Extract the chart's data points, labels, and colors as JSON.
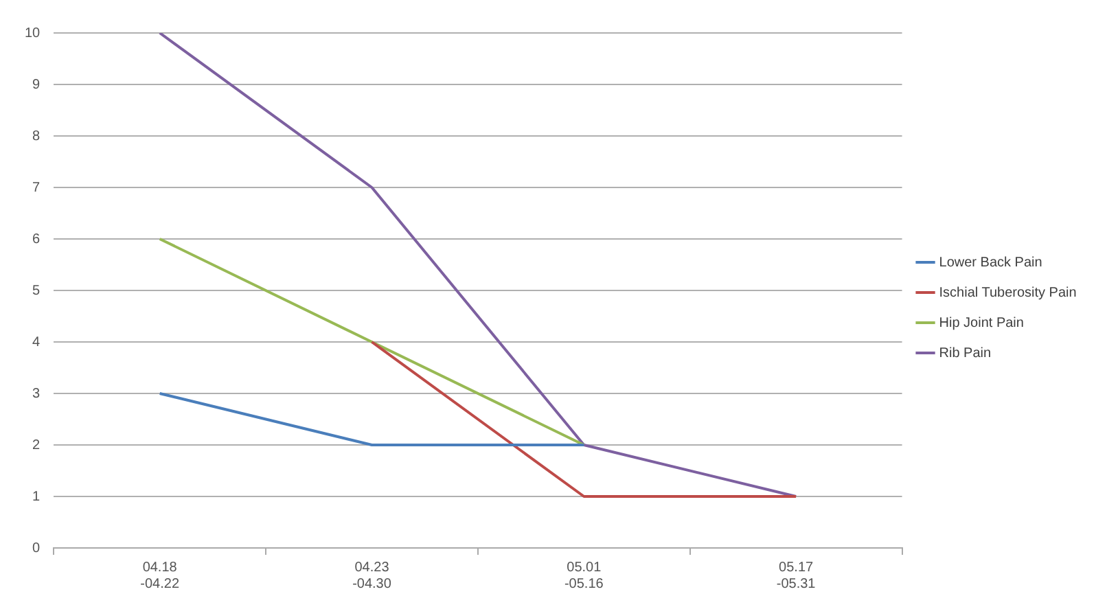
{
  "chart_data": {
    "type": "line",
    "categories": [
      "04.18\n-04.22",
      "04.23\n-04.30",
      "05.01\n-05.16",
      "05.17\n-05.31"
    ],
    "series": [
      {
        "name": "Lower Back Pain",
        "color": "#4a7ebb",
        "values": [
          3,
          2,
          2,
          null
        ]
      },
      {
        "name": "Ischial Tuberosity Pain",
        "color": "#be4b48",
        "values": [
          null,
          4,
          1,
          1
        ]
      },
      {
        "name": "Hip Joint Pain",
        "color": "#98b954",
        "values": [
          6,
          4,
          2,
          null
        ]
      },
      {
        "name": "Rib Pain",
        "color": "#7d60a0",
        "values": [
          10,
          7,
          2,
          1
        ]
      }
    ],
    "ylim": [
      0,
      10
    ],
    "yticks": [
      0,
      1,
      2,
      3,
      4,
      5,
      6,
      7,
      8,
      9,
      10
    ],
    "grid": "y",
    "legend": "right",
    "marker": "none",
    "line_style": "solid"
  }
}
